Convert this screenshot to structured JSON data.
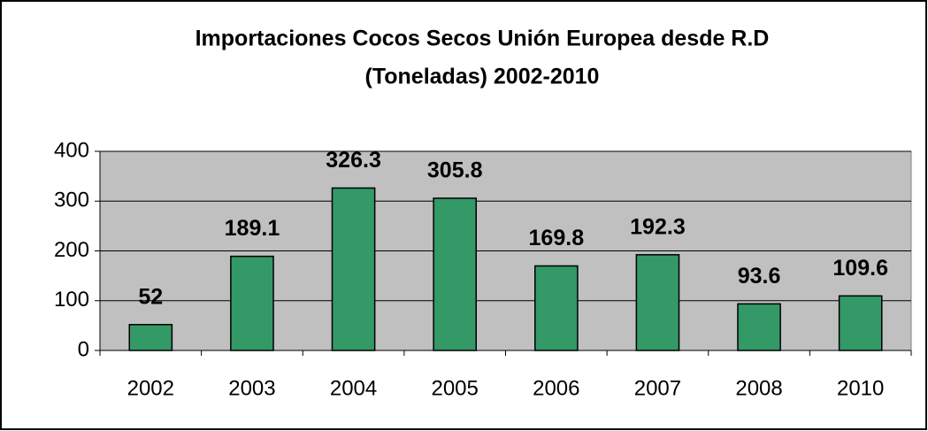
{
  "chart_data": {
    "type": "bar",
    "title": "Importaciones Cocos Secos Unión Europea desde R.D",
    "subtitle": "(Toneladas) 2002-2010",
    "categories": [
      "2002",
      "2003",
      "2004",
      "2005",
      "2006",
      "2007",
      "2008",
      "2010"
    ],
    "values": [
      52,
      189.1,
      326.3,
      305.8,
      169.8,
      192.3,
      93.6,
      109.6
    ],
    "color": "#339966",
    "ylim": [
      0,
      400
    ],
    "yticks": [
      0,
      100,
      200,
      300,
      400
    ],
    "grid": true
  }
}
